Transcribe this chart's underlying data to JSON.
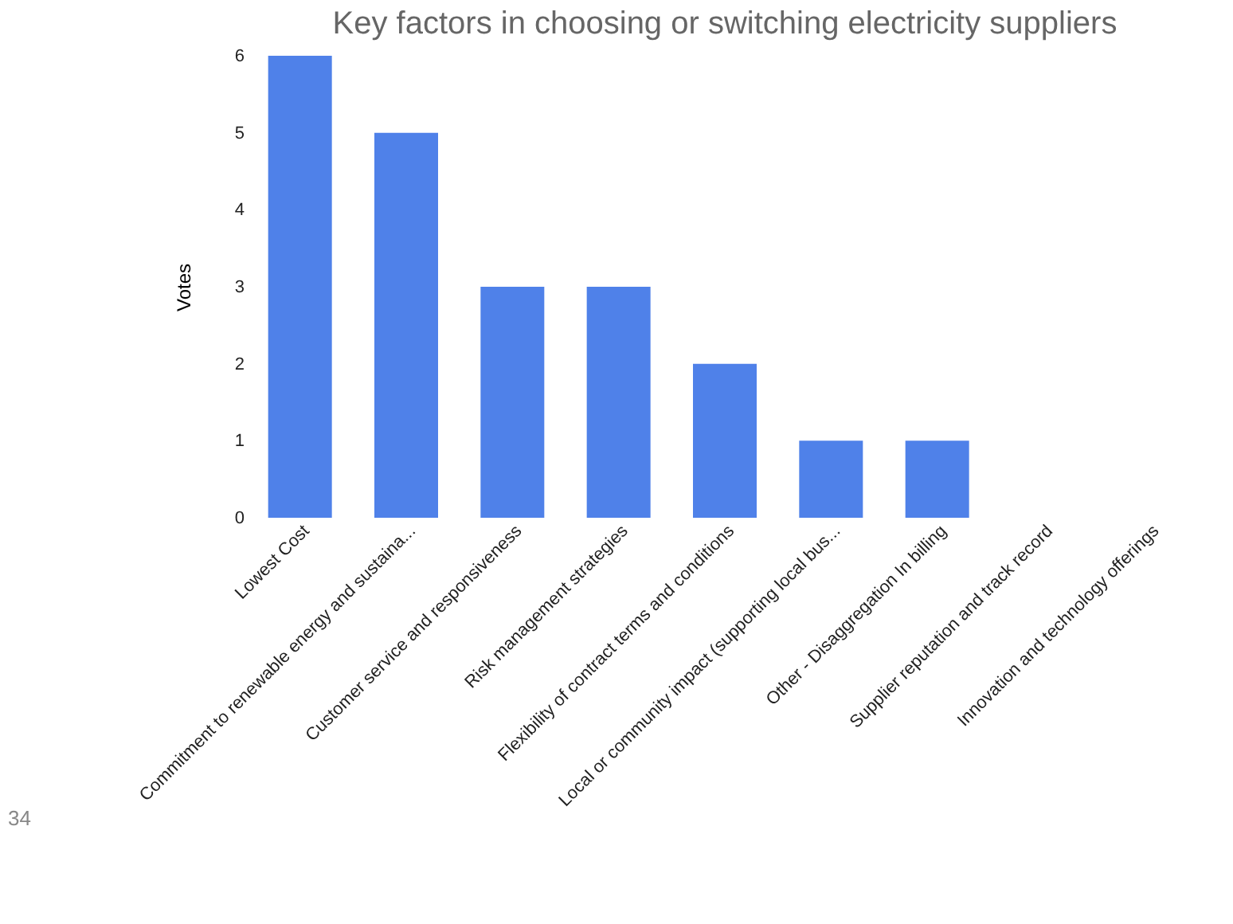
{
  "chart_data": {
    "type": "bar",
    "title": "Key factors in choosing or switching electricity suppliers",
    "ylabel": "Votes",
    "categories": [
      "Lowest Cost",
      "Commitment to renewable energy and sustaina...",
      "Customer service and responsiveness",
      "Risk management strategies",
      "Flexibility of contract terms and conditions",
      "Local or community impact (supporting local bus...",
      "Other - Disaggregation In billing",
      "Supplier reputation and track record",
      "Innovation and technology offerings"
    ],
    "values": [
      6,
      5,
      3,
      3,
      2,
      1,
      1,
      0,
      0
    ],
    "color": "#4f81e9",
    "ylim": [
      0,
      6
    ],
    "yticks": [
      0,
      1,
      2,
      3,
      4,
      5,
      6
    ],
    "grid": false,
    "annotations": [
      "34"
    ]
  }
}
